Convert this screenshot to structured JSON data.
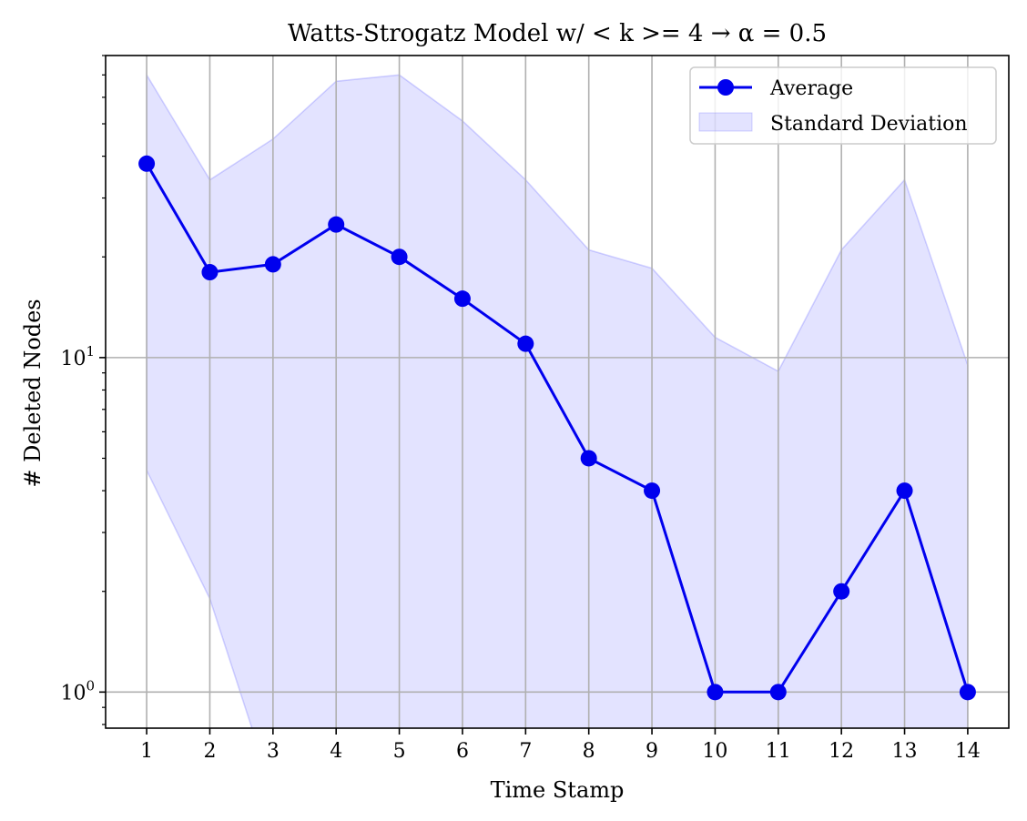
{
  "chart_data": {
    "type": "line",
    "title": "Watts-Strogatz Model w/ < k >= 4 → α = 0.5",
    "xlabel": "Time Stamp",
    "ylabel": "# Deleted Nodes",
    "x": [
      1,
      2,
      3,
      4,
      5,
      6,
      7,
      8,
      9,
      10,
      11,
      12,
      13,
      14
    ],
    "yscale": "log",
    "ylim": [
      0.78,
      80
    ],
    "yticks": [
      {
        "value": 1,
        "base": "10",
        "exp": "0"
      },
      {
        "value": 10,
        "base": "10",
        "exp": "1"
      }
    ],
    "grid": true,
    "legend_position": "top-right",
    "series": [
      {
        "name": "Average",
        "kind": "line-marker",
        "color": "#0000ee",
        "values": [
          38,
          18,
          19,
          25,
          20,
          15,
          11,
          5,
          4,
          1,
          1,
          2,
          4,
          1
        ]
      },
      {
        "name": "Standard Deviation",
        "kind": "band",
        "color": "#0000ff",
        "opacity": 0.11,
        "upper": [
          70,
          34,
          45,
          67,
          70,
          51,
          34,
          21,
          18.5,
          11.5,
          9.1,
          21,
          34,
          9.5
        ],
        "lower": [
          4.6,
          1.9,
          0.5,
          0.5,
          0.5,
          0.5,
          0.5,
          0.5,
          0.5,
          0.5,
          0.5,
          0.5,
          0.5,
          0.5
        ]
      }
    ]
  }
}
